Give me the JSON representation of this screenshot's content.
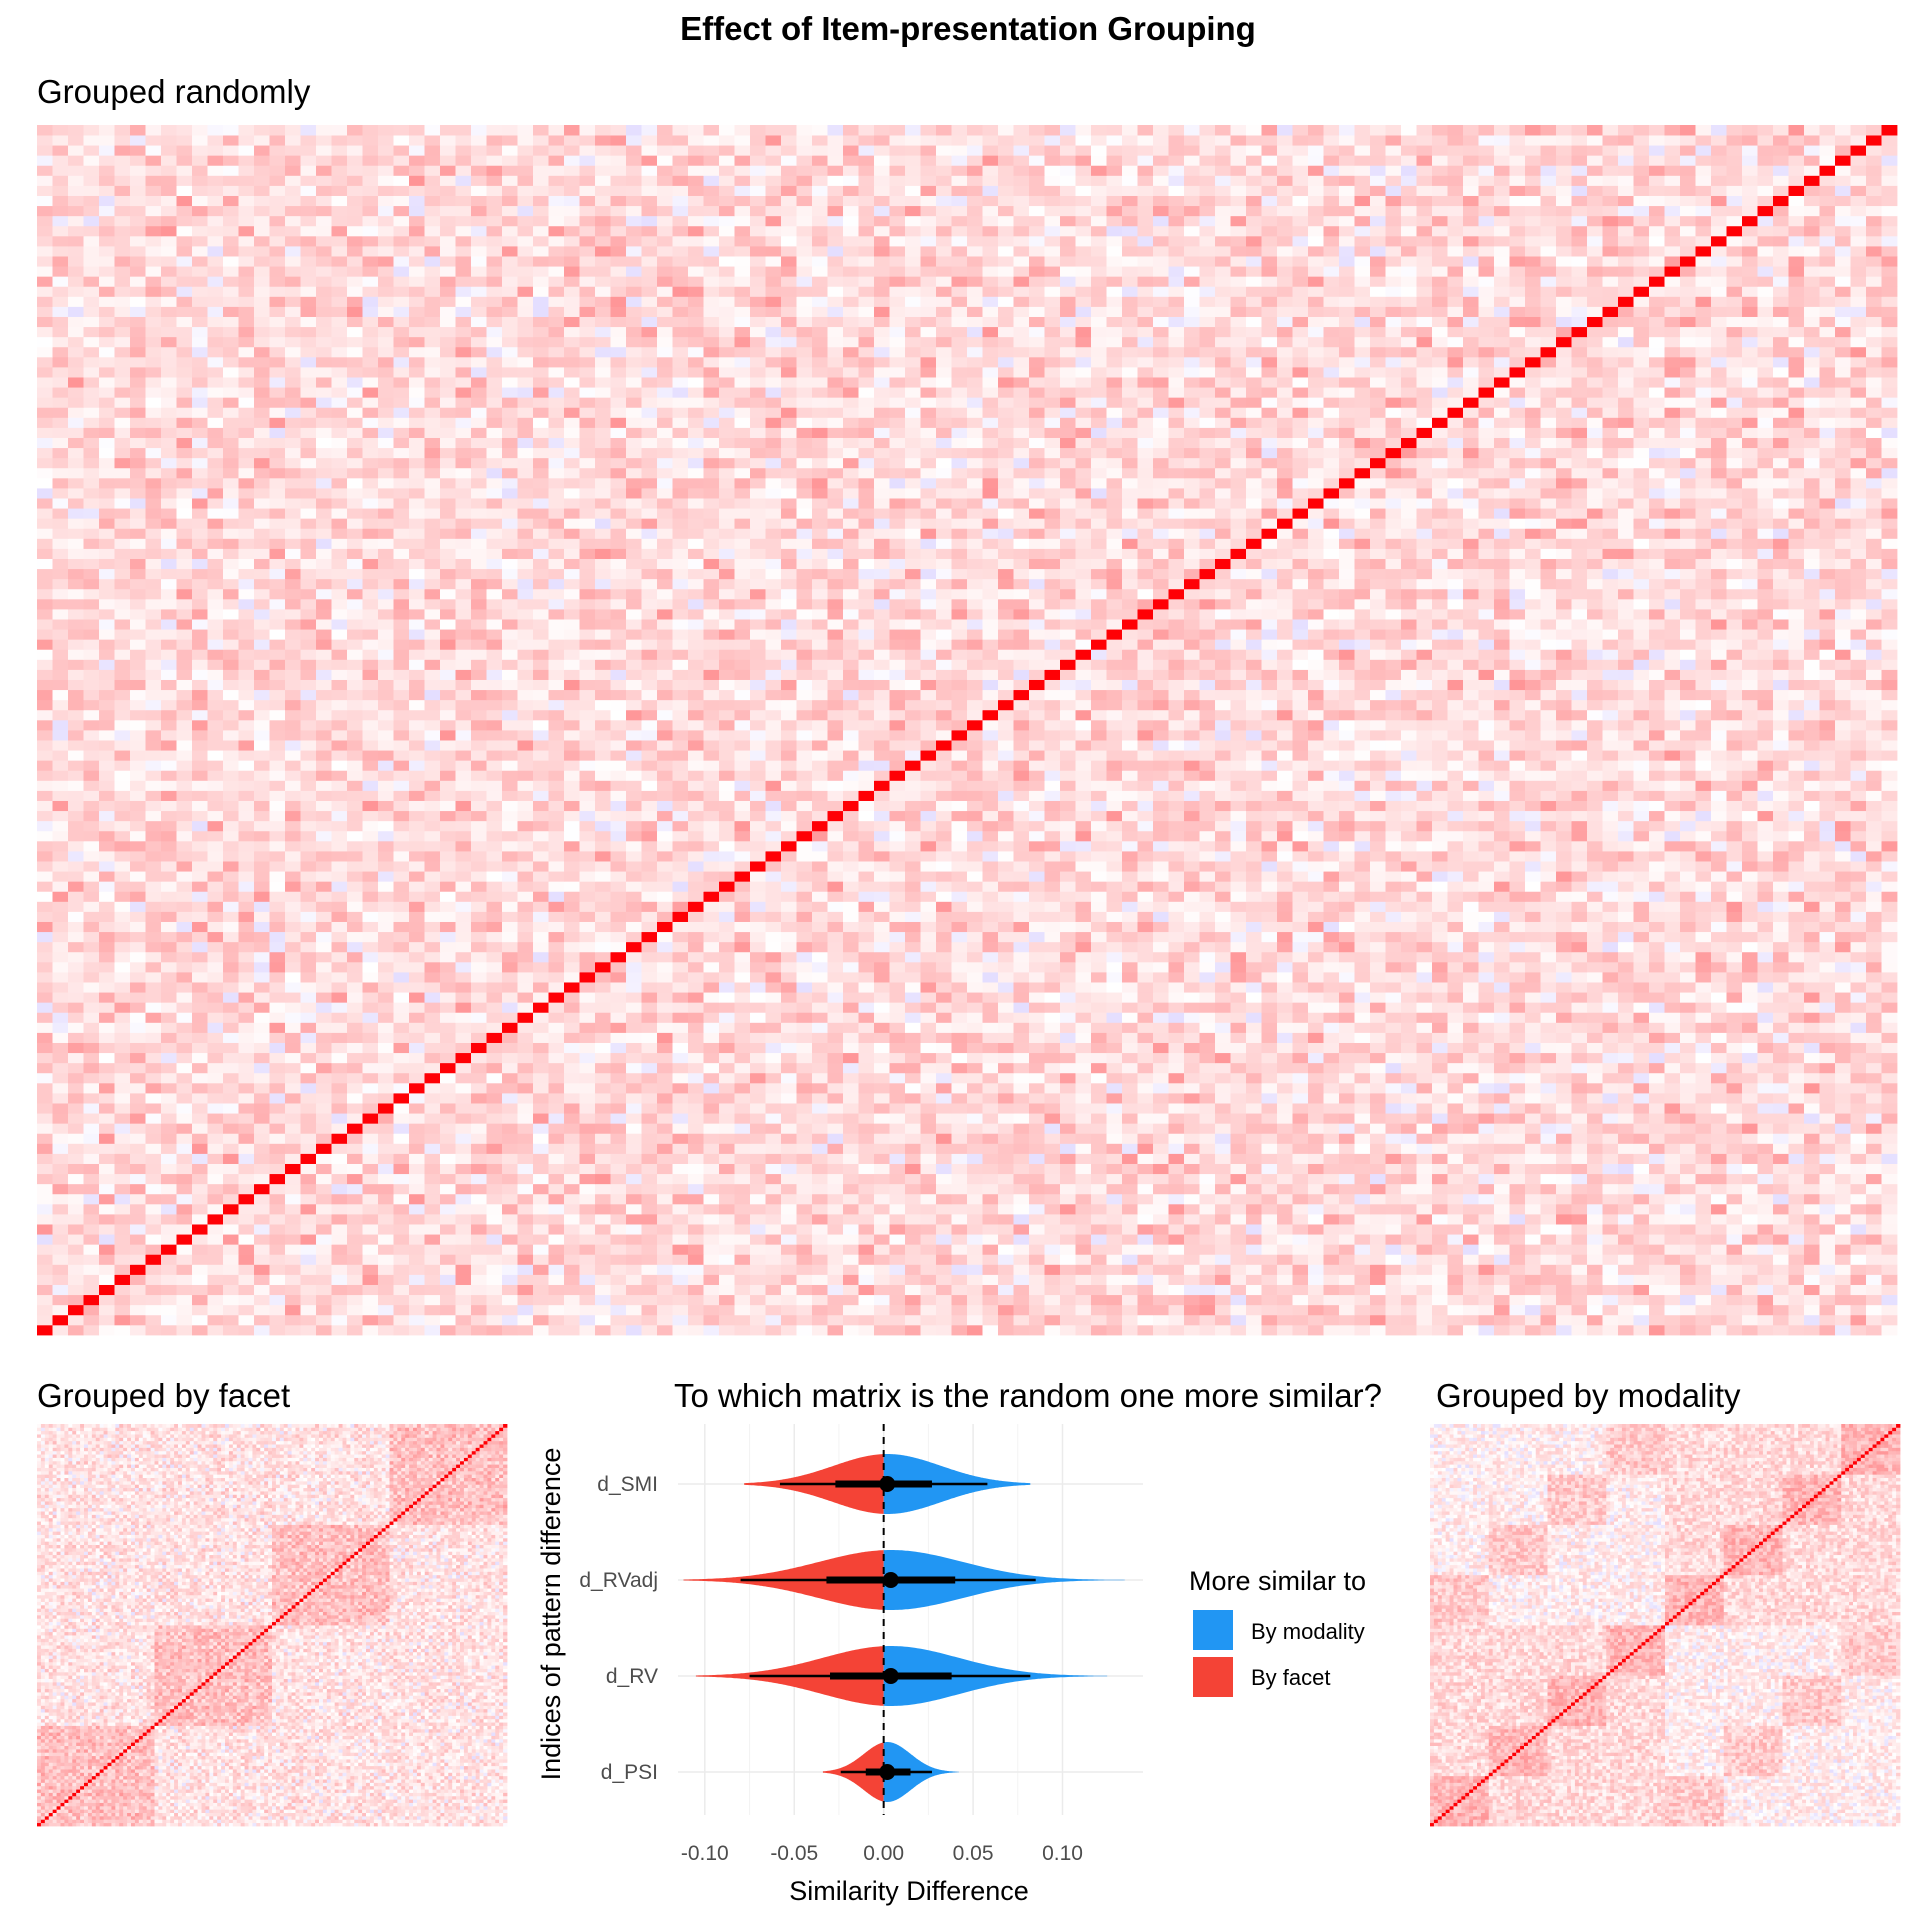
{
  "title": "Effect of Item-presentation Grouping",
  "colors": {
    "diagonal": "#ff0000",
    "positive": "#ff0000",
    "negative": "#7b5cff",
    "by_modality": "#2196f3",
    "by_facet": "#f44336",
    "grid": "#ebebeb",
    "tick_text": "#4d4d4d"
  },
  "chart_data": [
    {
      "type": "heatmap",
      "title": "Grouped randomly",
      "ordering": "random",
      "cells_per_side": 120,
      "diagonal_value": 1,
      "value_range": [
        -0.2,
        1
      ],
      "axes_visible": false
    },
    {
      "type": "heatmap",
      "title": "Grouped by facet",
      "ordering": "facet",
      "cells_per_side": 120,
      "diagonal_value": 1,
      "value_range": [
        -0.2,
        1
      ],
      "axes_visible": false
    },
    {
      "type": "violin",
      "title": "To which matrix is the random one more similar?",
      "xlabel": "Similarity Difference",
      "ylabel": "Indices of pattern difference",
      "xlim": [
        -0.115,
        0.145
      ],
      "xticks": [
        -0.1,
        -0.05,
        0.0,
        0.05,
        0.1
      ],
      "xtick_labels": [
        "-0.10",
        "-0.05",
        "0.00",
        "0.05",
        "0.10"
      ],
      "reference_line_x": 0,
      "reference_line_style": "dashed",
      "grid": true,
      "categories": [
        "d_SMI",
        "d_RVadj",
        "d_RV",
        "d_PSI"
      ],
      "series": [
        {
          "category": "d_SMI",
          "median": 0.002,
          "q25": -0.027,
          "q75": 0.027,
          "low": -0.058,
          "high": 0.058,
          "min": -0.078,
          "max": 0.082,
          "sd": 0.03
        },
        {
          "category": "d_RVadj",
          "median": 0.004,
          "q25": -0.032,
          "q75": 0.04,
          "low": -0.08,
          "high": 0.085,
          "min": -0.112,
          "max": 0.135,
          "sd": 0.04
        },
        {
          "category": "d_RV",
          "median": 0.004,
          "q25": -0.03,
          "q75": 0.038,
          "low": -0.075,
          "high": 0.082,
          "min": -0.105,
          "max": 0.125,
          "sd": 0.038
        },
        {
          "category": "d_PSI",
          "median": 0.002,
          "q25": -0.01,
          "q75": 0.015,
          "low": -0.024,
          "high": 0.027,
          "min": -0.034,
          "max": 0.042,
          "sd": 0.013
        }
      ],
      "legend": {
        "title": "More similar to",
        "position": "right",
        "entries": [
          {
            "label": "By modality",
            "color": "#2196f3"
          },
          {
            "label": "By facet",
            "color": "#f44336"
          }
        ]
      }
    },
    {
      "type": "heatmap",
      "title": "Grouped by modality",
      "ordering": "modality",
      "cells_per_side": 120,
      "diagonal_value": 1,
      "value_range": [
        -0.2,
        1
      ],
      "axes_visible": false
    }
  ]
}
